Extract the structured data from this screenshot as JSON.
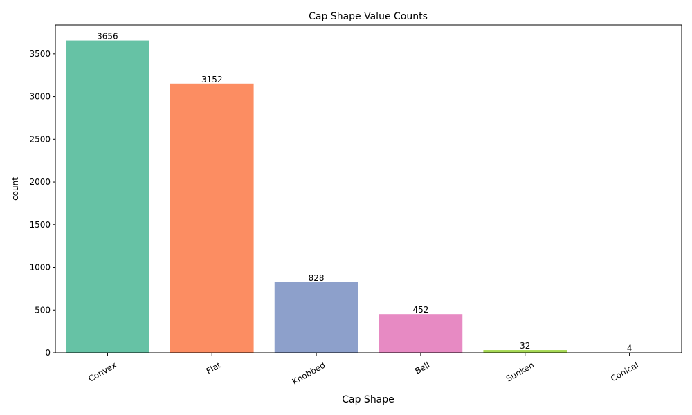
{
  "chart_data": {
    "type": "bar",
    "title": "Cap Shape Value Counts",
    "xlabel": "Cap Shape",
    "ylabel": "count",
    "categories": [
      "Convex",
      "Flat",
      "Knobbed",
      "Bell",
      "Sunken",
      "Conical"
    ],
    "values": [
      3656,
      3152,
      828,
      452,
      32,
      4
    ],
    "data_labels": [
      "3656",
      "3152",
      "828",
      "452",
      "32",
      "4"
    ],
    "colors": [
      "#66c2a5",
      "#fc8d62",
      "#8da0cb",
      "#e78ac3",
      "#a6d854",
      "#ffd92f"
    ],
    "ylim": [
      0,
      3838.8
    ],
    "yticks": [
      0,
      500,
      1000,
      1500,
      2000,
      2500,
      3000,
      3500
    ],
    "ytick_labels": [
      "0",
      "500",
      "1000",
      "1500",
      "2000",
      "2500",
      "3000",
      "3500"
    ],
    "xtick_rotation_deg": 30,
    "grid": false,
    "legend": "none"
  }
}
